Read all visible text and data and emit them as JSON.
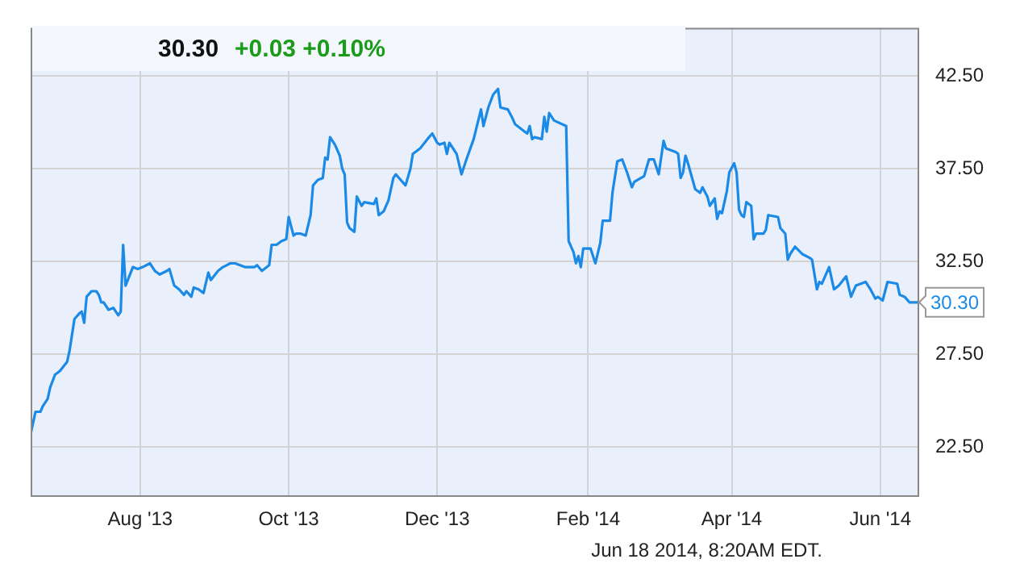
{
  "chart_data": {
    "type": "line",
    "title": "30.30",
    "subtitle": "+0.03 +0.10%",
    "color": "#1a8ae6",
    "grid": true,
    "legend": false,
    "marker": "none",
    "line_style": "solid",
    "xlim": [
      "2013-06-17",
      "2014-06-17"
    ],
    "xticks": [
      {
        "value": "2013-08-01",
        "label": "Aug '13"
      },
      {
        "value": "2013-10-01",
        "label": "Oct '13"
      },
      {
        "value": "2013-12-01",
        "label": "Dec '13"
      },
      {
        "value": "2014-02-01",
        "label": "Feb '14"
      },
      {
        "value": "2014-04-01",
        "label": "Apr '14"
      },
      {
        "value": "2014-06-01",
        "label": "Jun '14"
      }
    ],
    "ylim": [
      19.9,
      45.1
    ],
    "yticks": [
      {
        "value": 22.5,
        "label": "22.50"
      },
      {
        "value": 27.5,
        "label": "27.50"
      },
      {
        "value": 32.5,
        "label": "32.50"
      },
      {
        "value": 37.5,
        "label": "37.50"
      },
      {
        "value": 42.5,
        "label": "42.50"
      }
    ],
    "x": [
      "2013-06-17",
      "2013-06-19",
      "2013-06-21",
      "2013-06-22",
      "2013-06-24",
      "2013-06-25",
      "2013-06-27",
      "2013-06-29",
      "2013-07-02",
      "2013-07-03",
      "2013-07-05",
      "2013-07-07",
      "2013-07-08",
      "2013-07-09",
      "2013-07-10",
      "2013-07-12",
      "2013-07-14",
      "2013-07-15",
      "2013-07-16",
      "2013-07-17",
      "2013-07-19",
      "2013-07-21",
      "2013-07-22",
      "2013-07-23",
      "2013-07-24",
      "2013-07-25",
      "2013-07-26",
      "2013-07-29",
      "2013-07-31",
      "2013-08-02",
      "2013-08-05",
      "2013-08-07",
      "2013-08-09",
      "2013-08-12",
      "2013-08-13",
      "2013-08-15",
      "2013-08-17",
      "2013-08-19",
      "2013-08-20",
      "2013-08-22",
      "2013-08-23",
      "2013-08-25",
      "2013-08-27",
      "2013-08-29",
      "2013-08-30",
      "2013-09-02",
      "2013-09-04",
      "2013-09-07",
      "2013-09-09",
      "2013-09-13",
      "2013-09-17",
      "2013-09-18",
      "2013-09-20",
      "2013-09-23",
      "2013-09-24",
      "2013-09-26",
      "2013-09-28",
      "2013-09-30",
      "2013-10-01",
      "2013-10-03",
      "2013-10-04",
      "2013-10-06",
      "2013-10-08",
      "2013-10-10",
      "2013-10-11",
      "2013-10-13",
      "2013-10-15",
      "2013-10-16",
      "2013-10-17",
      "2013-10-18",
      "2013-10-20",
      "2013-10-22",
      "2013-10-23",
      "2013-10-24",
      "2013-10-25",
      "2013-10-26",
      "2013-10-28",
      "2013-10-29",
      "2013-10-31",
      "2013-11-01",
      "2013-11-05",
      "2013-11-06",
      "2013-11-07",
      "2013-11-09",
      "2013-11-11",
      "2013-11-13",
      "2013-11-14",
      "2013-11-16",
      "2013-11-18",
      "2013-11-20",
      "2013-11-21",
      "2013-11-24",
      "2013-11-27",
      "2013-11-29",
      "2013-12-01",
      "2013-12-02",
      "2013-12-04",
      "2013-12-05",
      "2013-12-06",
      "2013-12-09",
      "2013-12-11",
      "2013-12-13",
      "2013-12-16",
      "2013-12-19",
      "2013-12-20",
      "2013-12-22",
      "2013-12-24",
      "2013-12-26",
      "2013-12-27",
      "2013-12-30",
      "2014-01-01",
      "2014-01-02",
      "2014-01-05",
      "2014-01-07",
      "2014-01-08",
      "2014-01-09",
      "2014-01-10",
      "2014-01-13",
      "2014-01-14",
      "2014-01-15",
      "2014-01-16",
      "2014-01-18",
      "2014-01-23",
      "2014-01-24",
      "2014-01-26",
      "2014-01-27",
      "2014-01-28",
      "2014-01-29",
      "2014-01-30",
      "2014-02-02",
      "2014-02-04",
      "2014-02-06",
      "2014-02-07",
      "2014-02-10",
      "2014-02-11",
      "2014-02-13",
      "2014-02-15",
      "2014-02-17",
      "2014-02-19",
      "2014-02-20",
      "2014-02-24",
      "2014-02-26",
      "2014-02-28",
      "2014-03-02",
      "2014-03-04",
      "2014-03-05",
      "2014-03-09",
      "2014-03-10",
      "2014-03-11",
      "2014-03-12",
      "2014-03-13",
      "2014-03-14",
      "2014-03-17",
      "2014-03-19",
      "2014-03-20",
      "2014-03-22",
      "2014-03-23",
      "2014-03-25",
      "2014-03-26",
      "2014-03-27",
      "2014-03-28",
      "2014-03-30",
      "2014-03-31",
      "2014-04-02",
      "2014-04-03",
      "2014-04-04",
      "2014-04-05",
      "2014-04-06",
      "2014-04-07",
      "2014-04-09",
      "2014-04-10",
      "2014-04-11",
      "2014-04-14",
      "2014-04-15",
      "2014-04-16",
      "2014-04-20",
      "2014-04-21",
      "2014-04-23",
      "2014-04-24",
      "2014-04-25",
      "2014-04-27",
      "2014-04-30",
      "2014-05-03",
      "2014-05-04",
      "2014-05-06",
      "2014-05-07",
      "2014-05-08",
      "2014-05-11",
      "2014-05-13",
      "2014-05-15",
      "2014-05-18",
      "2014-05-20",
      "2014-05-22",
      "2014-05-26",
      "2014-05-28",
      "2014-05-30",
      "2014-05-31",
      "2014-06-02",
      "2014-06-04",
      "2014-06-08",
      "2014-06-09",
      "2014-06-11",
      "2014-06-13",
      "2014-06-17"
    ],
    "values": [
      23.2,
      24.4,
      24.4,
      24.7,
      25.1,
      25.7,
      26.4,
      26.6,
      27.1,
      27.7,
      29.4,
      29.7,
      29.8,
      29.2,
      30.6,
      30.9,
      30.9,
      30.7,
      30.3,
      30.3,
      29.9,
      30.0,
      29.8,
      29.6,
      29.8,
      33.4,
      31.2,
      32.2,
      32.1,
      32.2,
      32.4,
      32.0,
      31.8,
      32.0,
      32.1,
      31.2,
      31.0,
      30.7,
      30.9,
      30.6,
      31.1,
      31.0,
      30.8,
      31.9,
      31.5,
      32.0,
      32.2,
      32.4,
      32.4,
      32.2,
      32.2,
      32.3,
      32.0,
      32.3,
      33.4,
      33.4,
      33.6,
      33.7,
      34.9,
      33.9,
      34.0,
      34.0,
      33.9,
      35.0,
      36.6,
      36.9,
      37.0,
      38.1,
      38.0,
      39.2,
      38.8,
      38.2,
      37.5,
      37.2,
      34.6,
      34.3,
      34.1,
      36.0,
      35.5,
      35.7,
      35.6,
      35.9,
      35.0,
      35.2,
      35.8,
      37.0,
      37.2,
      36.9,
      36.6,
      37.5,
      38.3,
      38.6,
      39.1,
      39.4,
      38.9,
      38.8,
      38.9,
      38.3,
      38.9,
      38.3,
      37.2,
      38.0,
      39.1,
      40.7,
      39.8,
      40.8,
      41.5,
      41.8,
      40.8,
      40.7,
      40.2,
      39.9,
      39.6,
      39.4,
      39.8,
      39.1,
      39.2,
      39.1,
      40.3,
      39.5,
      40.5,
      40.1,
      39.8,
      33.6,
      33.0,
      32.4,
      32.8,
      32.2,
      33.2,
      33.2,
      32.4,
      33.5,
      34.7,
      34.7,
      36.2,
      37.9,
      38.0,
      37.3,
      36.5,
      36.8,
      37.1,
      38.0,
      38.0,
      37.2,
      39.0,
      38.6,
      38.4,
      38.3,
      37.0,
      37.3,
      38.2,
      37.8,
      36.4,
      36.2,
      36.5,
      36.0,
      35.5,
      35.9,
      34.8,
      35.2,
      35.1,
      36.3,
      37.3,
      37.8,
      37.3,
      35.3,
      35.0,
      34.9,
      35.7,
      35.5,
      33.7,
      34.0,
      34.0,
      34.2,
      35.0,
      34.9,
      34.3,
      34.0,
      32.6,
      32.9,
      33.3,
      32.9,
      32.7,
      32.6,
      31.0,
      31.4,
      31.3,
      32.2,
      31.0,
      31.2,
      31.7,
      30.6,
      31.2,
      31.4,
      31.0,
      30.5,
      30.6,
      30.4,
      31.4,
      31.3,
      30.7,
      30.6,
      30.3,
      30.3
    ],
    "annotations": [
      {
        "text": "30.30",
        "x": "2014-06-17",
        "y": 30.3
      },
      "Jun 18 2014, 8:20AM EDT."
    ]
  }
}
